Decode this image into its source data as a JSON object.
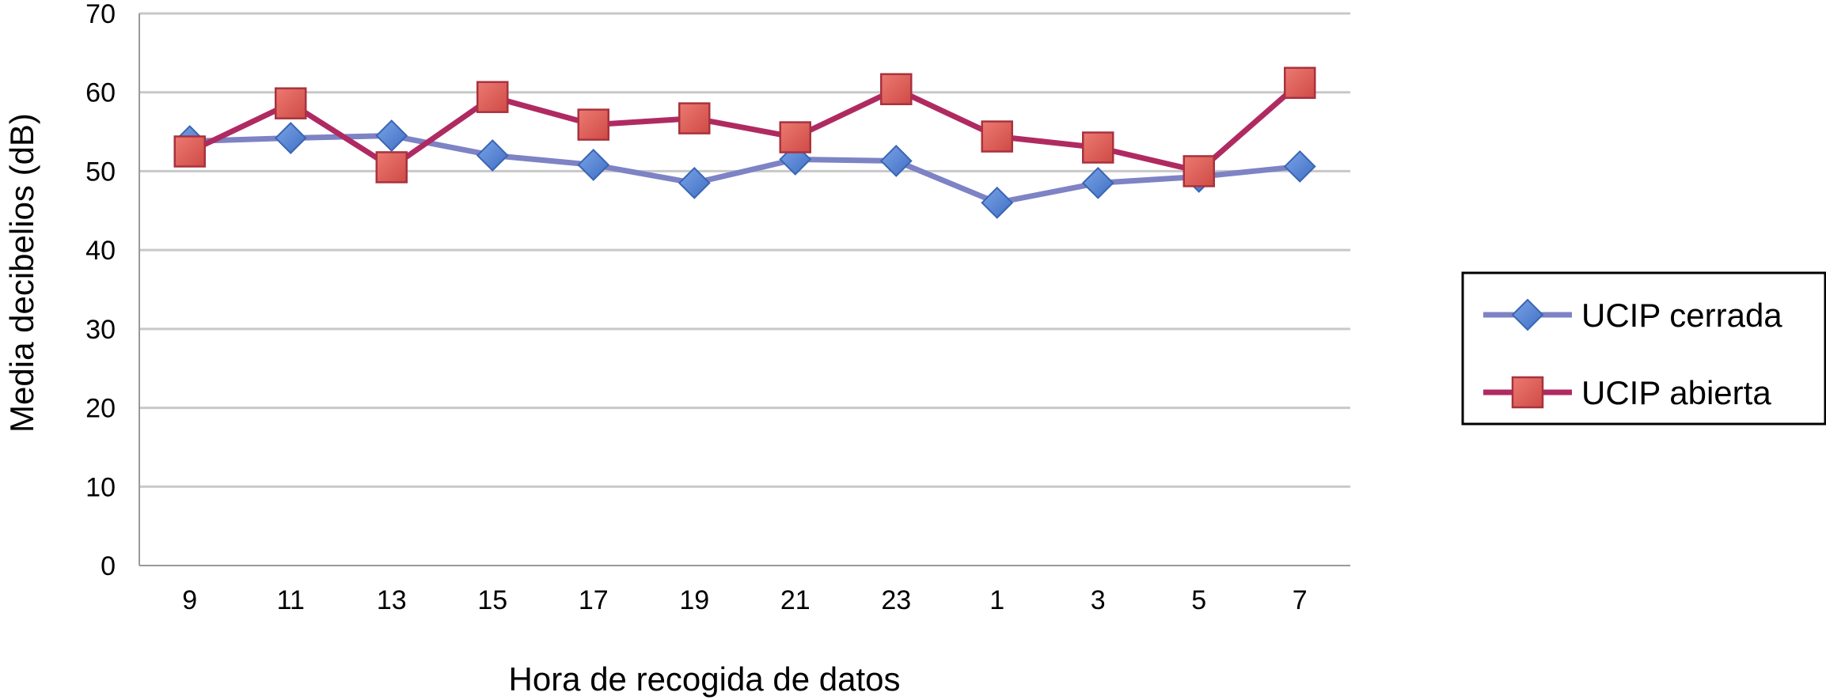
{
  "chart_data": {
    "type": "line",
    "title": "",
    "xlabel": "Hora de recogida de datos",
    "ylabel": "Media decibelios (dB)",
    "categories": [
      "9",
      "11",
      "13",
      "15",
      "17",
      "19",
      "21",
      "23",
      "1",
      "3",
      "5",
      "7"
    ],
    "ylim": [
      0,
      70
    ],
    "yticks": [
      "0",
      "10",
      "20",
      "30",
      "40",
      "50",
      "60",
      "70"
    ],
    "grid": true,
    "legend_position": "right",
    "series": [
      {
        "name": "UCIP cerrada",
        "color": "#4a7bd0",
        "line_color": "#7d83c4",
        "marker": "diamond",
        "values": [
          53.8,
          54.2,
          54.5,
          52.0,
          50.8,
          48.5,
          51.5,
          51.3,
          46.0,
          48.5,
          49.3,
          50.6
        ]
      },
      {
        "name": "UCIP abierta",
        "color": "#e0554f",
        "line_color": "#b02a62",
        "marker": "square",
        "values": [
          52.5,
          58.6,
          50.5,
          59.4,
          55.9,
          56.7,
          54.3,
          60.4,
          54.4,
          53.0,
          50.0,
          61.2
        ]
      }
    ]
  }
}
